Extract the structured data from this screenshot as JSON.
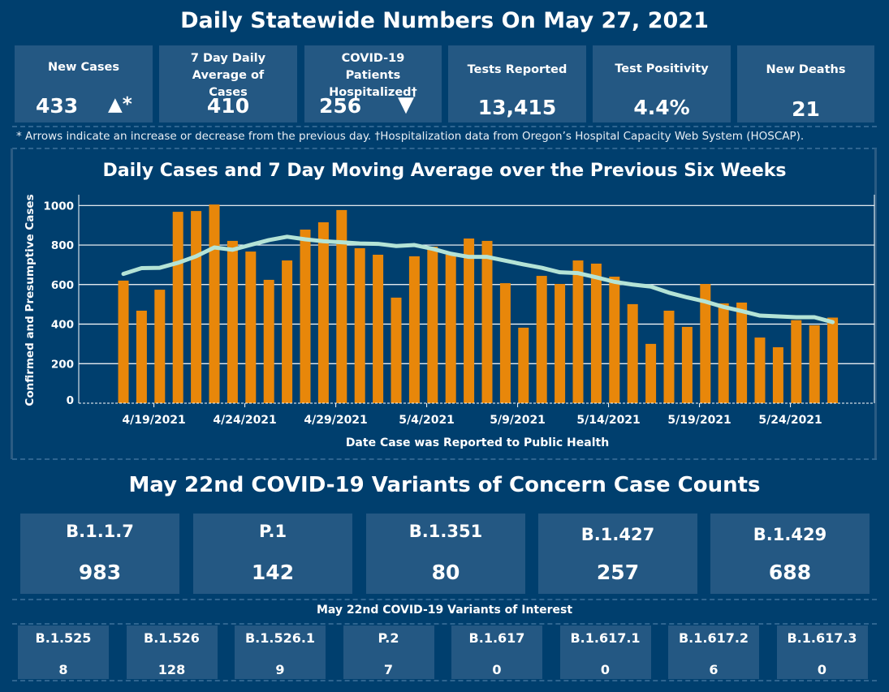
{
  "header": {
    "title": "Daily Statewide Numbers On May 27, 2021"
  },
  "stats": [
    {
      "label": "New Cases",
      "value": "433",
      "trend": "▲*",
      "trend_name": "up-arrow-icon"
    },
    {
      "label": "7 Day Daily Average of Cases",
      "value": "410"
    },
    {
      "label": "COVID-19 Patients Hospitalized†",
      "value": "256",
      "trend": "▼",
      "trend_name": "down-arrow-icon"
    },
    {
      "label": "Tests Reported",
      "value": "13,415"
    },
    {
      "label": "Test Positivity",
      "value": "4.4%"
    },
    {
      "label": "New Deaths",
      "value": "21"
    }
  ],
  "footnote": "* Arrows indicate an increase or decrease from the previous day. †Hospitalization data from Oregon’s Hospital Capacity Web System (HOSCAP).",
  "colors": {
    "background": "#003f6e",
    "card": "#245883",
    "bar": "#e8870a",
    "line": "#b4e3d6",
    "grid": "#ffffff"
  },
  "chart_data": {
    "type": "bar",
    "title": "Daily Cases and 7 Day Moving Average over the Previous Six Weeks",
    "xlabel": "Date Case was Reported to Public Health",
    "ylabel": "Confirmed and Presumptive Cases",
    "ylim": [
      0,
      1050
    ],
    "yticks": [
      0,
      200,
      400,
      600,
      800,
      1000
    ],
    "grid": true,
    "x_start": "4/17/2021",
    "x_end": "5/26/2021",
    "xtick_labels": [
      "4/19/2021",
      "4/24/2021",
      "4/29/2021",
      "5/4/2021",
      "5/9/2021",
      "5/14/2021",
      "5/19/2021",
      "5/24/2021"
    ],
    "xtick_indices": [
      2,
      7,
      12,
      17,
      22,
      27,
      32,
      37
    ],
    "series": [
      {
        "name": "Daily Cases",
        "type": "bar",
        "values": [
          620,
          468,
          574,
          968,
          972,
          1005,
          821,
          767,
          624,
          722,
          878,
          915,
          977,
          784,
          751,
          534,
          743,
          792,
          751,
          833,
          821,
          607,
          382,
          644,
          603,
          722,
          706,
          640,
          501,
          300,
          468,
          386,
          603,
          505,
          509,
          332,
          283,
          420,
          394,
          433
        ]
      },
      {
        "name": "7 Day Moving Average",
        "type": "line",
        "values": [
          654,
          683,
          685,
          710,
          743,
          788,
          776,
          801,
          825,
          842,
          829,
          819,
          814,
          808,
          806,
          795,
          800,
          781,
          756,
          740,
          740,
          721,
          702,
          685,
          662,
          658,
          637,
          614,
          600,
          590,
          559,
          535,
          514,
          487,
          466,
          443,
          439,
          435,
          435,
          410
        ]
      }
    ]
  },
  "variants_of_concern": {
    "title": "May 22nd  COVID-19 Variants of Concern Case Counts",
    "items": [
      {
        "name": "B.1.1.7",
        "count": "983"
      },
      {
        "name": "P.1",
        "count": "142"
      },
      {
        "name": "B.1.351",
        "count": "80"
      },
      {
        "name": "B.1.427",
        "count": "257"
      },
      {
        "name": "B.1.429",
        "count": "688"
      }
    ]
  },
  "variants_of_interest": {
    "title": "May 22nd COVID-19 Variants of Interest",
    "items": [
      {
        "name": "B.1.525",
        "count": "8"
      },
      {
        "name": "B.1.526",
        "count": "128"
      },
      {
        "name": "B.1.526.1",
        "count": "9"
      },
      {
        "name": "P.2",
        "count": "7"
      },
      {
        "name": "B.1.617",
        "count": "0"
      },
      {
        "name": "B.1.617.1",
        "count": "0"
      },
      {
        "name": "B.1.617.2",
        "count": "6"
      },
      {
        "name": "B.1.617.3",
        "count": "0"
      }
    ]
  }
}
